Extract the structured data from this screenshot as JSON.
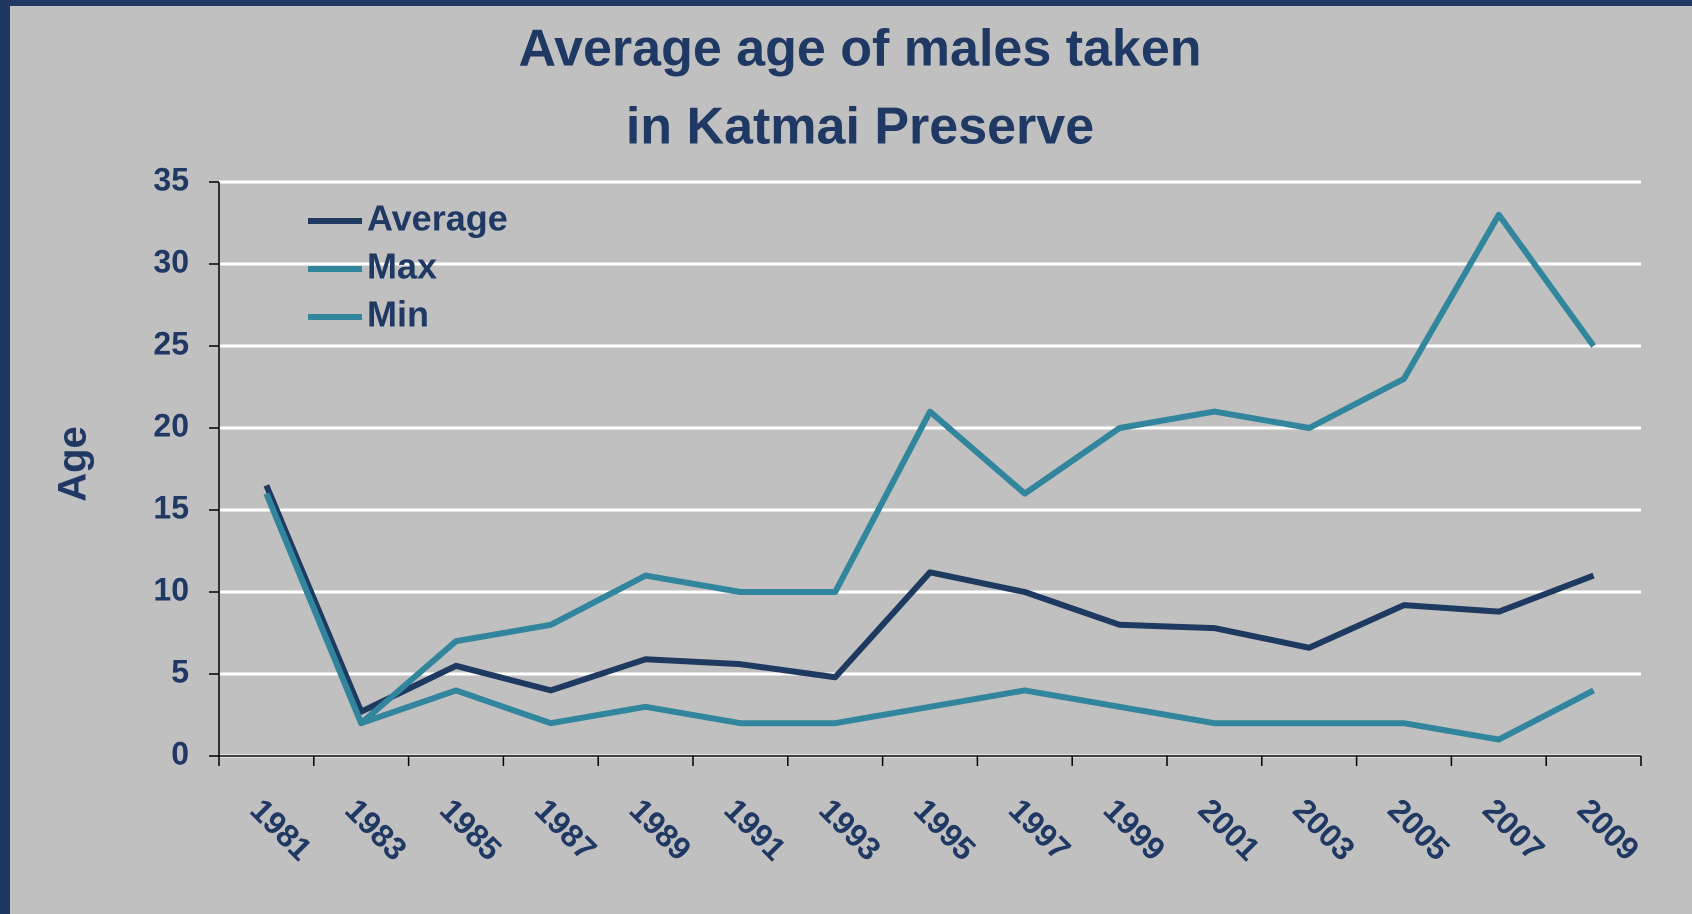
{
  "chart_data": {
    "type": "line",
    "title": [
      "Average age of males taken",
      "in Katmai Preserve"
    ],
    "y_label": "Age",
    "categories": [
      "1981",
      "1983",
      "1985",
      "1987",
      "1989",
      "1991",
      "1993",
      "1995",
      "1997",
      "1999",
      "2001",
      "2003",
      "2005",
      "2007",
      "2009"
    ],
    "series": [
      {
        "name": "Average",
        "color": "#1f3a60",
        "values": [
          16.5,
          2.7,
          5.5,
          4,
          5.9,
          5.6,
          4.8,
          11.2,
          10,
          8,
          7.8,
          6.6,
          9.2,
          8.8,
          11
        ]
      },
      {
        "name": "Max",
        "color": "#31859c",
        "values": [
          16,
          2,
          7,
          8,
          11,
          10,
          10,
          21,
          16,
          20,
          21,
          20,
          23,
          33,
          25
        ]
      },
      {
        "name": "Min",
        "color": "#31859c",
        "values": [
          16,
          2,
          4,
          2,
          3,
          2,
          2,
          3,
          4,
          3,
          2,
          2,
          2,
          1,
          4
        ]
      }
    ],
    "ylim": [
      0,
      35
    ],
    "yticks": [
      0,
      5,
      10,
      15,
      20,
      25,
      30,
      35
    ],
    "grid": true,
    "legend": "top-left"
  }
}
